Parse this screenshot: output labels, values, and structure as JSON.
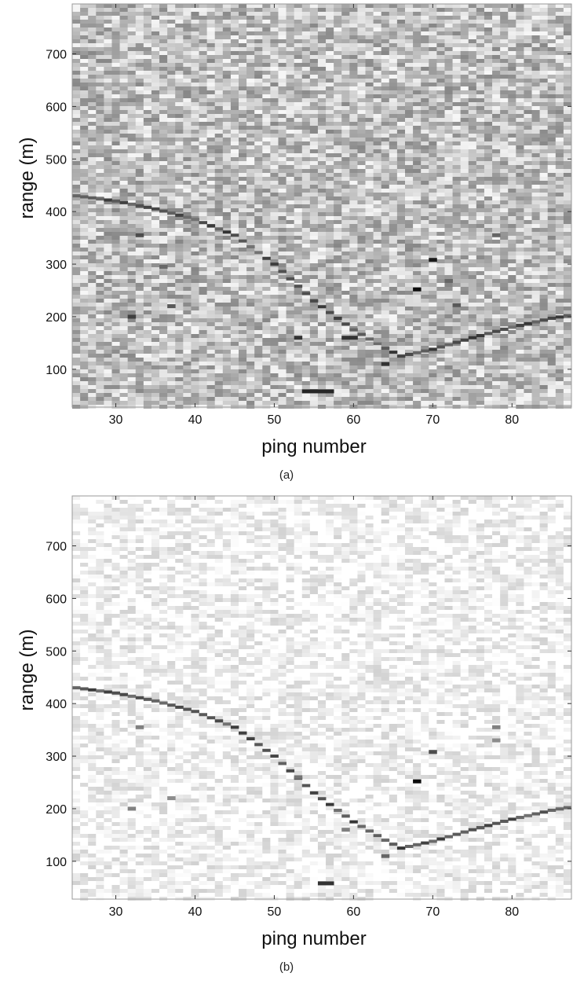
{
  "chart_data": [
    {
      "type": "heatmap",
      "caption": "(a)",
      "xlabel": "ping number",
      "ylabel": "range (m)",
      "xlim": [
        24.5,
        87.5
      ],
      "ylim": [
        28,
        795
      ],
      "xticks": [
        30,
        40,
        50,
        60,
        70,
        80
      ],
      "yticks": [
        100,
        200,
        300,
        400,
        500,
        600,
        700
      ],
      "colormap": "grayscale, dark = strong echo",
      "background_level": 0.25,
      "noise_level": 0.22,
      "target_track": [
        {
          "ping": 25,
          "range": 430
        },
        {
          "ping": 30,
          "range": 420
        },
        {
          "ping": 35,
          "range": 405
        },
        {
          "ping": 40,
          "range": 385
        },
        {
          "ping": 45,
          "range": 355
        },
        {
          "ping": 50,
          "range": 300
        },
        {
          "ping": 55,
          "range": 230
        },
        {
          "ping": 60,
          "range": 175
        },
        {
          "ping": 64,
          "range": 140
        },
        {
          "ping": 66,
          "range": 125
        },
        {
          "ping": 70,
          "range": 138
        },
        {
          "ping": 75,
          "range": 160
        },
        {
          "ping": 80,
          "range": 180
        },
        {
          "ping": 85,
          "range": 197
        },
        {
          "ping": 87,
          "range": 202
        }
      ],
      "strong_returns": [
        {
          "ping": 32,
          "range": 200,
          "strength": 0.75
        },
        {
          "ping": 33,
          "range": 355,
          "strength": 0.7
        },
        {
          "ping": 36,
          "range": 295,
          "strength": 0.6
        },
        {
          "ping": 37,
          "range": 220,
          "strength": 0.65
        },
        {
          "ping": 53,
          "range": 160,
          "strength": 0.8
        },
        {
          "ping": 54,
          "range": 58,
          "strength": 0.85
        },
        {
          "ping": 55,
          "range": 58,
          "strength": 0.85
        },
        {
          "ping": 56,
          "range": 58,
          "strength": 0.85
        },
        {
          "ping": 57,
          "range": 58,
          "strength": 0.85
        },
        {
          "ping": 59,
          "range": 160,
          "strength": 0.8
        },
        {
          "ping": 60,
          "range": 160,
          "strength": 0.8
        },
        {
          "ping": 64,
          "range": 110,
          "strength": 0.8
        },
        {
          "ping": 68,
          "range": 252,
          "strength": 0.95
        },
        {
          "ping": 70,
          "range": 308,
          "strength": 0.9
        },
        {
          "ping": 72,
          "range": 268,
          "strength": 0.6
        },
        {
          "ping": 73,
          "range": 222,
          "strength": 0.65
        },
        {
          "ping": 78,
          "range": 355,
          "strength": 0.6
        }
      ]
    },
    {
      "type": "heatmap",
      "caption": "(b)",
      "xlabel": "ping number",
      "ylabel": "range (m)",
      "xlim": [
        24.5,
        87.5
      ],
      "ylim": [
        28,
        795
      ],
      "xticks": [
        30,
        40,
        50,
        60,
        70,
        80
      ],
      "yticks": [
        100,
        200,
        300,
        400,
        500,
        600,
        700
      ],
      "colormap": "grayscale, dark = strong echo",
      "background_level": 0.04,
      "noise_level": 0.14,
      "target_track": [
        {
          "ping": 25,
          "range": 430
        },
        {
          "ping": 30,
          "range": 420
        },
        {
          "ping": 35,
          "range": 405
        },
        {
          "ping": 40,
          "range": 385
        },
        {
          "ping": 45,
          "range": 355
        },
        {
          "ping": 50,
          "range": 300
        },
        {
          "ping": 55,
          "range": 230
        },
        {
          "ping": 60,
          "range": 175
        },
        {
          "ping": 64,
          "range": 140
        },
        {
          "ping": 66,
          "range": 125
        },
        {
          "ping": 70,
          "range": 138
        },
        {
          "ping": 75,
          "range": 160
        },
        {
          "ping": 80,
          "range": 180
        },
        {
          "ping": 85,
          "range": 197
        },
        {
          "ping": 87,
          "range": 202
        }
      ],
      "strong_returns": [
        {
          "ping": 32,
          "range": 200,
          "strength": 0.5
        },
        {
          "ping": 33,
          "range": 355,
          "strength": 0.5
        },
        {
          "ping": 37,
          "range": 220,
          "strength": 0.45
        },
        {
          "ping": 53,
          "range": 260,
          "strength": 0.55
        },
        {
          "ping": 56,
          "range": 58,
          "strength": 0.8
        },
        {
          "ping": 57,
          "range": 58,
          "strength": 0.8
        },
        {
          "ping": 59,
          "range": 160,
          "strength": 0.5
        },
        {
          "ping": 64,
          "range": 110,
          "strength": 0.6
        },
        {
          "ping": 68,
          "range": 252,
          "strength": 0.95
        },
        {
          "ping": 70,
          "range": 308,
          "strength": 0.7
        },
        {
          "ping": 78,
          "range": 355,
          "strength": 0.5
        },
        {
          "ping": 78,
          "range": 330,
          "strength": 0.45
        }
      ]
    }
  ]
}
